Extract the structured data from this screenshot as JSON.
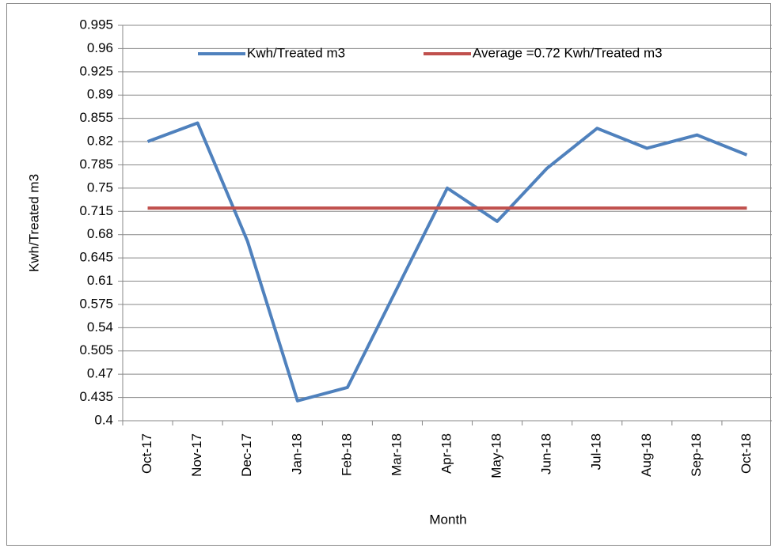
{
  "chart_data": {
    "type": "line",
    "x_label": "Month",
    "y_label": "Kwh/Treated m3",
    "categories": [
      "Oct-17",
      "Nov-17",
      "Dec-17",
      "Jan-18",
      "Feb-18",
      "Mar-18",
      "Apr-18",
      "May-18",
      "Jun-18",
      "Jul-18",
      "Aug-18",
      "Sep-18",
      "Oct-18"
    ],
    "series": [
      {
        "name": "Kwh/Treated m3",
        "color": "#4f81bd",
        "values": [
          0.82,
          0.848,
          0.67,
          0.43,
          0.45,
          0.6,
          0.75,
          0.7,
          0.78,
          0.84,
          0.81,
          0.83,
          0.8
        ]
      },
      {
        "name": "Average =0.72 Kwh/Treated m3",
        "color": "#c0504d",
        "values": [
          0.72,
          0.72,
          0.72,
          0.72,
          0.72,
          0.72,
          0.72,
          0.72,
          0.72,
          0.72,
          0.72,
          0.72,
          0.72
        ]
      }
    ],
    "ylim": [
      0.4,
      0.995
    ],
    "yticks": [
      0.4,
      0.435,
      0.47,
      0.505,
      0.54,
      0.575,
      0.61,
      0.645,
      0.68,
      0.715,
      0.75,
      0.785,
      0.82,
      0.855,
      0.89,
      0.925,
      0.96,
      0.995
    ],
    "grid": true,
    "legend": "top"
  }
}
